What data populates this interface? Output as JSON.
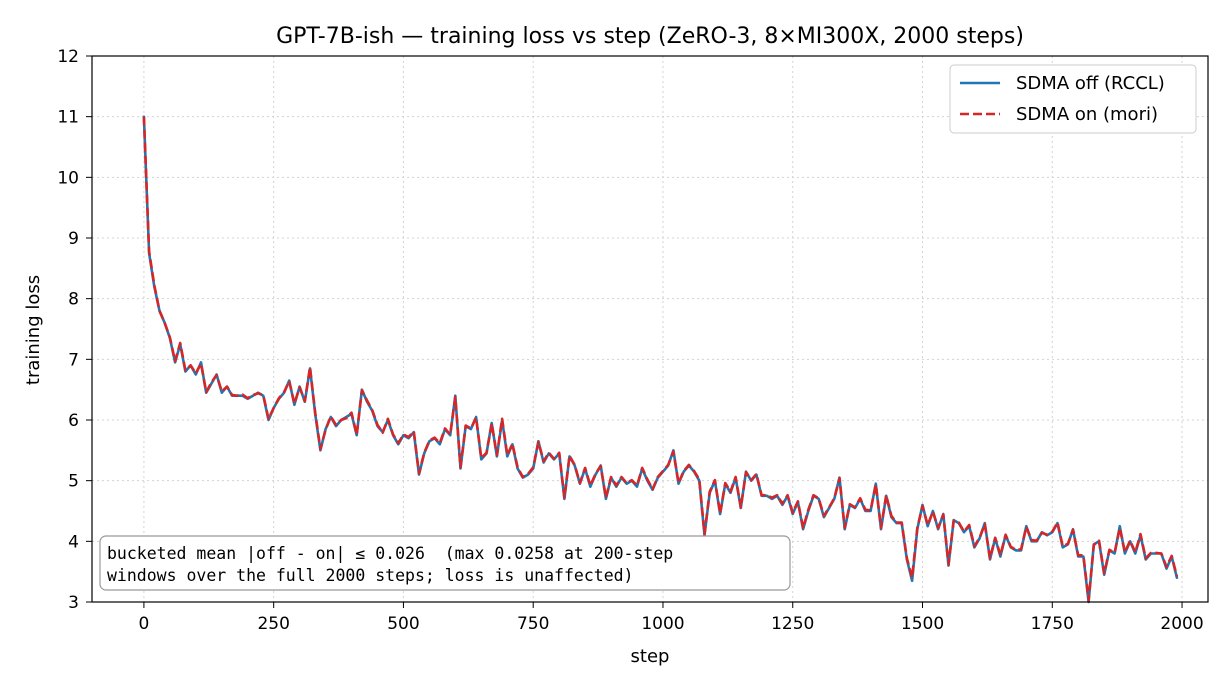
{
  "chart_data": {
    "type": "line",
    "title": "GPT-7B-ish — training loss vs step (ZeRO-3, 8×MI300X, 2000 steps)",
    "xlabel": "step",
    "ylabel": "training loss",
    "xlim": [
      -100,
      2050
    ],
    "ylim": [
      3,
      12
    ],
    "xticks": [
      0,
      250,
      500,
      750,
      1000,
      1250,
      1500,
      1750,
      2000
    ],
    "yticks": [
      3,
      4,
      5,
      6,
      7,
      8,
      9,
      10,
      11,
      12
    ],
    "grid": true,
    "legend_position": "top-right",
    "annotation": [
      "bucketed mean |off - on| ≤ 0.026  (max 0.0258 at 200-step",
      "windows over the full 2000 steps; loss is unaffected)"
    ],
    "colors": {
      "off": "#1f77b4",
      "on": "#d62728"
    },
    "series": [
      {
        "name": "SDMA off (RCCL)",
        "style": "solid",
        "x": [
          0,
          10,
          20,
          30,
          40,
          50,
          60,
          70,
          80,
          90,
          100,
          110,
          120,
          130,
          140,
          150,
          160,
          170,
          180,
          190,
          200,
          210,
          220,
          230,
          240,
          250,
          260,
          270,
          280,
          290,
          300,
          310,
          320,
          330,
          340,
          350,
          360,
          370,
          380,
          390,
          400,
          410,
          420,
          430,
          440,
          450,
          460,
          470,
          480,
          490,
          500,
          510,
          520,
          530,
          540,
          550,
          560,
          570,
          580,
          590,
          600,
          610,
          620,
          630,
          640,
          650,
          660,
          670,
          680,
          690,
          700,
          710,
          720,
          730,
          740,
          750,
          760,
          770,
          780,
          790,
          800,
          810,
          820,
          830,
          840,
          850,
          860,
          870,
          880,
          890,
          900,
          910,
          920,
          930,
          940,
          950,
          960,
          970,
          980,
          990,
          1000,
          1010,
          1020,
          1030,
          1040,
          1050,
          1060,
          1070,
          1080,
          1090,
          1100,
          1110,
          1120,
          1130,
          1140,
          1150,
          1160,
          1170,
          1180,
          1190,
          1200,
          1210,
          1220,
          1230,
          1240,
          1250,
          1260,
          1270,
          1280,
          1290,
          1300,
          1310,
          1320,
          1330,
          1340,
          1350,
          1360,
          1370,
          1380,
          1390,
          1400,
          1410,
          1420,
          1430,
          1440,
          1450,
          1460,
          1470,
          1480,
          1490,
          1500,
          1510,
          1520,
          1530,
          1540,
          1550,
          1560,
          1570,
          1580,
          1590,
          1600,
          1610,
          1620,
          1630,
          1640,
          1650,
          1660,
          1670,
          1680,
          1690,
          1700,
          1710,
          1720,
          1730,
          1740,
          1750,
          1760,
          1770,
          1780,
          1790,
          1800,
          1810,
          1820,
          1830,
          1840,
          1850,
          1860,
          1870,
          1880,
          1890,
          1900,
          1910,
          1920,
          1930,
          1940,
          1950,
          1960,
          1970,
          1980,
          1990
        ],
        "y": [
          11.0,
          8.75,
          8.2,
          7.8,
          7.6,
          7.35,
          6.95,
          7.25,
          6.8,
          6.9,
          6.75,
          6.95,
          6.45,
          6.6,
          6.75,
          6.45,
          6.55,
          6.4,
          6.4,
          6.4,
          6.35,
          6.4,
          6.45,
          6.4,
          6.0,
          6.2,
          6.35,
          6.45,
          6.65,
          6.25,
          6.55,
          6.3,
          6.85,
          6.1,
          5.5,
          5.85,
          6.05,
          5.9,
          6.0,
          6.05,
          6.1,
          5.75,
          6.5,
          6.3,
          6.15,
          5.9,
          5.8,
          6.0,
          5.75,
          5.6,
          5.75,
          5.7,
          5.8,
          5.1,
          5.45,
          5.65,
          5.7,
          5.6,
          5.85,
          5.75,
          6.4,
          5.2,
          5.9,
          5.85,
          6.05,
          5.35,
          5.45,
          5.95,
          5.4,
          6.0,
          5.4,
          5.6,
          5.2,
          5.05,
          5.1,
          5.2,
          5.65,
          5.3,
          5.45,
          5.35,
          5.45,
          4.7,
          5.4,
          5.25,
          4.95,
          5.2,
          4.9,
          5.1,
          5.25,
          4.7,
          5.05,
          4.9,
          5.05,
          4.95,
          5.0,
          4.9,
          5.2,
          5.0,
          4.85,
          5.05,
          5.15,
          5.25,
          5.5,
          4.95,
          5.15,
          5.25,
          5.15,
          5.0,
          4.1,
          4.8,
          5.0,
          4.45,
          4.95,
          4.8,
          5.05,
          4.55,
          5.15,
          5.0,
          5.1,
          4.75,
          4.75,
          4.7,
          4.75,
          4.6,
          4.75,
          4.45,
          4.65,
          4.2,
          4.5,
          4.75,
          4.7,
          4.4,
          4.55,
          4.7,
          5.05,
          4.2,
          4.6,
          4.55,
          4.7,
          4.5,
          4.5,
          4.95,
          4.2,
          4.75,
          4.4,
          4.3,
          4.3,
          3.7,
          3.35,
          4.2,
          4.6,
          4.25,
          4.5,
          4.2,
          4.45,
          3.6,
          4.35,
          4.3,
          4.15,
          4.25,
          3.9,
          4.05,
          4.3,
          3.7,
          4.05,
          3.75,
          4.1,
          3.9,
          3.85,
          3.85,
          4.25,
          4.0,
          4.0,
          4.15,
          4.1,
          4.15,
          4.3,
          3.9,
          3.95,
          4.2,
          3.75,
          3.75,
          3.0,
          3.95,
          4.0,
          3.45,
          3.85,
          3.8,
          4.25,
          3.8,
          4.0,
          3.8,
          4.1,
          3.7,
          3.8,
          3.8,
          3.8,
          3.55,
          3.75,
          3.4
        ]
      },
      {
        "name": "SDMA on (mori)",
        "style": "dashed",
        "x": [
          0,
          10,
          20,
          30,
          40,
          50,
          60,
          70,
          80,
          90,
          100,
          110,
          120,
          130,
          140,
          150,
          160,
          170,
          180,
          190,
          200,
          210,
          220,
          230,
          240,
          250,
          260,
          270,
          280,
          290,
          300,
          310,
          320,
          330,
          340,
          350,
          360,
          370,
          380,
          390,
          400,
          410,
          420,
          430,
          440,
          450,
          460,
          470,
          480,
          490,
          500,
          510,
          520,
          530,
          540,
          550,
          560,
          570,
          580,
          590,
          600,
          610,
          620,
          630,
          640,
          650,
          660,
          670,
          680,
          690,
          700,
          710,
          720,
          730,
          740,
          750,
          760,
          770,
          780,
          790,
          800,
          810,
          820,
          830,
          840,
          850,
          860,
          870,
          880,
          890,
          900,
          910,
          920,
          930,
          940,
          950,
          960,
          970,
          980,
          990,
          1000,
          1010,
          1020,
          1030,
          1040,
          1050,
          1060,
          1070,
          1080,
          1090,
          1100,
          1110,
          1120,
          1130,
          1140,
          1150,
          1160,
          1170,
          1180,
          1190,
          1200,
          1210,
          1220,
          1230,
          1240,
          1250,
          1260,
          1270,
          1280,
          1290,
          1300,
          1310,
          1320,
          1330,
          1340,
          1350,
          1360,
          1370,
          1380,
          1390,
          1400,
          1410,
          1420,
          1430,
          1440,
          1450,
          1460,
          1470,
          1480,
          1490,
          1500,
          1510,
          1520,
          1530,
          1540,
          1550,
          1560,
          1570,
          1580,
          1590,
          1600,
          1610,
          1620,
          1630,
          1640,
          1650,
          1660,
          1670,
          1680,
          1690,
          1700,
          1710,
          1720,
          1730,
          1740,
          1750,
          1760,
          1770,
          1780,
          1790,
          1800,
          1810,
          1820,
          1830,
          1840,
          1850,
          1860,
          1870,
          1880,
          1890,
          1900,
          1910,
          1920,
          1930,
          1940,
          1950,
          1960,
          1970,
          1980,
          1990
        ],
        "y": [
          11.0,
          8.78,
          8.22,
          7.8,
          7.6,
          7.36,
          6.97,
          7.27,
          6.82,
          6.9,
          6.77,
          6.93,
          6.46,
          6.62,
          6.74,
          6.47,
          6.55,
          6.41,
          6.4,
          6.42,
          6.36,
          6.41,
          6.44,
          6.41,
          6.02,
          6.2,
          6.36,
          6.46,
          6.64,
          6.27,
          6.54,
          6.31,
          6.87,
          6.12,
          5.52,
          5.84,
          6.06,
          5.92,
          6.0,
          6.03,
          6.12,
          5.76,
          6.49,
          6.32,
          6.16,
          5.92,
          5.79,
          6.02,
          5.76,
          5.62,
          5.76,
          5.72,
          5.81,
          5.12,
          5.46,
          5.66,
          5.71,
          5.62,
          5.86,
          5.76,
          6.38,
          5.22,
          5.91,
          5.86,
          6.04,
          5.37,
          5.46,
          5.94,
          5.42,
          6.02,
          5.42,
          5.61,
          5.22,
          5.06,
          5.11,
          5.22,
          5.64,
          5.32,
          5.46,
          5.36,
          5.46,
          4.72,
          5.41,
          5.26,
          4.96,
          5.21,
          4.92,
          5.11,
          5.24,
          4.72,
          5.06,
          4.92,
          5.06,
          4.96,
          5.01,
          4.92,
          5.21,
          5.02,
          4.86,
          5.06,
          5.16,
          5.26,
          5.48,
          4.96,
          5.16,
          5.26,
          5.16,
          5.02,
          4.12,
          4.82,
          5.01,
          4.46,
          4.96,
          4.82,
          5.06,
          4.56,
          5.14,
          5.01,
          5.11,
          4.76,
          4.76,
          4.72,
          4.76,
          4.62,
          4.76,
          4.47,
          4.66,
          4.22,
          4.52,
          4.76,
          4.71,
          4.42,
          4.56,
          4.71,
          5.04,
          4.22,
          4.61,
          4.56,
          4.71,
          4.52,
          4.51,
          4.94,
          4.22,
          4.76,
          4.42,
          4.31,
          4.31,
          3.72,
          3.4,
          4.22,
          4.58,
          4.27,
          4.49,
          4.22,
          4.44,
          3.62,
          4.34,
          4.31,
          4.16,
          4.27,
          3.92,
          4.06,
          4.28,
          3.72,
          4.06,
          3.77,
          4.11,
          3.91,
          3.86,
          3.87,
          4.24,
          4.02,
          4.01,
          4.14,
          4.11,
          4.16,
          4.31,
          3.92,
          3.96,
          4.19,
          3.77,
          3.77,
          3.03,
          3.94,
          4.01,
          3.47,
          3.86,
          3.81,
          4.22,
          3.82,
          4.01,
          3.82,
          4.12,
          3.72,
          3.81,
          3.81,
          3.8,
          3.58,
          3.76,
          3.42
        ]
      }
    ]
  }
}
